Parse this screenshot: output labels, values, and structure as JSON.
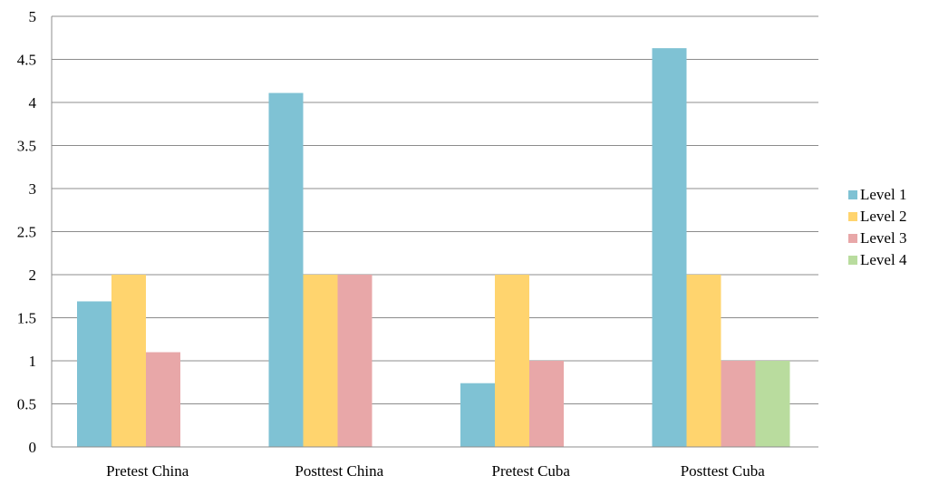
{
  "chart_data": {
    "type": "bar",
    "title": "",
    "xlabel": "",
    "ylabel": "",
    "categories": [
      "Pretest China",
      "Posttest China",
      "Pretest Cuba",
      "Posttest Cuba"
    ],
    "series": [
      {
        "name": "Level 1",
        "color": "#7FC2D4",
        "values": [
          1.69,
          4.11,
          0.74,
          4.63
        ]
      },
      {
        "name": "Level 2",
        "color": "#FFD46E",
        "values": [
          2,
          2,
          2,
          2
        ]
      },
      {
        "name": "Level 3",
        "color": "#E8A7A8",
        "values": [
          1.1,
          2,
          1,
          1
        ]
      },
      {
        "name": "Level 4",
        "color": "#B9DC9E",
        "values": [
          0,
          0,
          0,
          1
        ]
      }
    ],
    "ylim": [
      0,
      5
    ],
    "yticks": [
      "0",
      "0.5",
      "1",
      "1.5",
      "2",
      "2.5",
      "3",
      "3.5",
      "4",
      "4.5",
      "5"
    ],
    "grid": true,
    "legend": "right"
  }
}
